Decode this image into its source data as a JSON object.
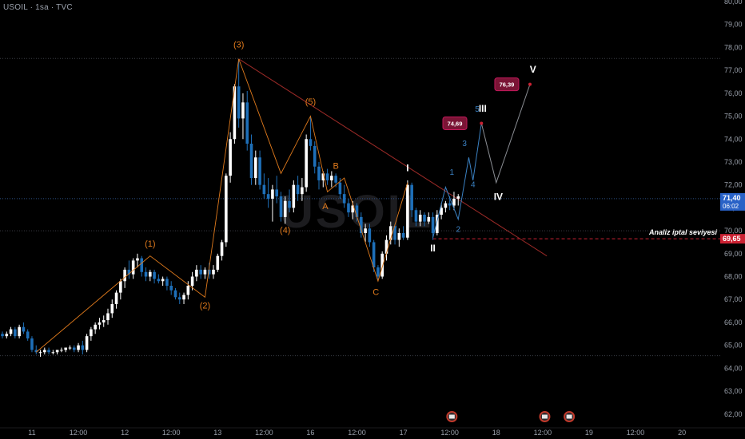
{
  "header": {
    "symbol": "USOIL · 1sa · TVC"
  },
  "watermark": "USOIL",
  "chart_data": {
    "type": "candlestick",
    "ylim": [
      61.4,
      80.0
    ],
    "y_ticks": [
      "80,00",
      "79,00",
      "78,00",
      "77,00",
      "76,00",
      "75,00",
      "74,00",
      "73,00",
      "72,00",
      "71,00",
      "70,00",
      "69,00",
      "68,00",
      "67,00",
      "66,00",
      "65,00",
      "64,00",
      "63,00",
      "62,00"
    ],
    "x_ticks": [
      {
        "label": "11",
        "t": 7
      },
      {
        "label": "12:00",
        "t": 18
      },
      {
        "label": "12",
        "t": 29
      },
      {
        "label": "12:00",
        "t": 40
      },
      {
        "label": "13",
        "t": 51
      },
      {
        "label": "12:00",
        "t": 62
      },
      {
        "label": "16",
        "t": 73
      },
      {
        "label": "12:00",
        "t": 84
      },
      {
        "label": "17",
        "t": 95
      },
      {
        "label": "12:00",
        "t": 106
      },
      {
        "label": "18",
        "t": 117
      },
      {
        "label": "12:00",
        "t": 128
      },
      {
        "label": "19",
        "t": 139
      },
      {
        "label": "12:00",
        "t": 150
      },
      {
        "label": "20",
        "t": 161
      }
    ],
    "candles": [
      [
        65.5,
        65.6,
        65.3,
        65.4
      ],
      [
        65.4,
        65.6,
        65.3,
        65.5
      ],
      [
        65.5,
        65.8,
        65.4,
        65.7
      ],
      [
        65.7,
        65.8,
        65.3,
        65.4
      ],
      [
        65.4,
        65.9,
        65.3,
        65.8
      ],
      [
        65.8,
        66.0,
        65.5,
        65.6
      ],
      [
        65.6,
        65.7,
        65.2,
        65.3
      ],
      [
        65.3,
        65.4,
        64.7,
        64.8
      ],
      [
        64.8,
        65.0,
        64.6,
        64.7
      ],
      [
        64.7,
        64.8,
        64.5,
        64.7
      ],
      [
        64.7,
        64.9,
        64.6,
        64.8
      ],
      [
        64.8,
        64.9,
        64.6,
        64.7
      ],
      [
        64.7,
        64.8,
        64.6,
        64.7
      ],
      [
        64.7,
        64.8,
        64.6,
        64.8
      ],
      [
        64.8,
        64.9,
        64.7,
        64.8
      ],
      [
        64.8,
        64.9,
        64.7,
        64.9
      ],
      [
        64.9,
        65.0,
        64.8,
        64.9
      ],
      [
        64.9,
        65.0,
        64.7,
        64.8
      ],
      [
        64.8,
        65.1,
        64.7,
        65.0
      ],
      [
        65.0,
        65.2,
        64.6,
        64.8
      ],
      [
        64.8,
        65.5,
        64.7,
        65.4
      ],
      [
        65.4,
        65.8,
        65.2,
        65.7
      ],
      [
        65.7,
        66.0,
        65.5,
        65.9
      ],
      [
        65.9,
        66.2,
        65.7,
        66.0
      ],
      [
        66.0,
        66.3,
        65.8,
        66.1
      ],
      [
        66.1,
        66.6,
        65.9,
        66.4
      ],
      [
        66.4,
        67.0,
        66.2,
        66.8
      ],
      [
        66.8,
        67.4,
        66.6,
        67.3
      ],
      [
        67.3,
        67.9,
        67.0,
        67.8
      ],
      [
        67.8,
        68.4,
        67.5,
        68.3
      ],
      [
        68.3,
        68.7,
        67.9,
        68.1
      ],
      [
        68.1,
        68.8,
        67.9,
        68.7
      ],
      [
        68.7,
        69.0,
        68.4,
        68.8
      ],
      [
        68.8,
        68.9,
        68.0,
        68.2
      ],
      [
        68.2,
        68.4,
        67.8,
        68.0
      ],
      [
        68.0,
        68.3,
        67.8,
        68.2
      ],
      [
        68.2,
        68.3,
        67.7,
        67.9
      ],
      [
        67.9,
        68.1,
        67.7,
        67.8
      ],
      [
        67.8,
        68.0,
        67.6,
        67.9
      ],
      [
        67.9,
        68.0,
        67.4,
        67.6
      ],
      [
        67.6,
        67.8,
        67.2,
        67.4
      ],
      [
        67.4,
        67.5,
        67.0,
        67.1
      ],
      [
        67.1,
        67.3,
        66.8,
        67.0
      ],
      [
        67.0,
        67.3,
        66.8,
        67.2
      ],
      [
        67.2,
        67.8,
        67.0,
        67.6
      ],
      [
        67.6,
        68.2,
        67.4,
        68.0
      ],
      [
        68.0,
        68.5,
        67.8,
        68.3
      ],
      [
        68.3,
        68.5,
        67.9,
        68.1
      ],
      [
        68.1,
        68.4,
        67.9,
        68.3
      ],
      [
        68.3,
        68.6,
        67.9,
        68.1
      ],
      [
        68.1,
        68.5,
        67.9,
        68.3
      ],
      [
        68.3,
        69.0,
        68.2,
        68.9
      ],
      [
        68.9,
        69.6,
        68.7,
        69.5
      ],
      [
        69.5,
        72.5,
        69.3,
        72.4
      ],
      [
        72.4,
        74.3,
        72.1,
        74.0
      ],
      [
        74.0,
        76.4,
        73.8,
        76.3
      ],
      [
        76.3,
        77.5,
        74.5,
        74.9
      ],
      [
        74.9,
        76.0,
        74.0,
        75.6
      ],
      [
        75.6,
        76.1,
        73.5,
        73.8
      ],
      [
        73.8,
        74.2,
        72.0,
        72.3
      ],
      [
        72.3,
        73.5,
        72.0,
        73.2
      ],
      [
        73.2,
        73.5,
        71.8,
        72.0
      ],
      [
        72.0,
        72.5,
        71.4,
        71.6
      ],
      [
        71.6,
        72.3,
        71.0,
        71.4
      ],
      [
        71.4,
        72.0,
        70.4,
        71.8
      ],
      [
        71.8,
        72.4,
        71.2,
        71.5
      ],
      [
        71.5,
        71.7,
        70.4,
        70.6
      ],
      [
        70.6,
        71.5,
        70.3,
        71.3
      ],
      [
        71.3,
        71.8,
        70.8,
        71.0
      ],
      [
        71.0,
        72.2,
        70.8,
        72.0
      ],
      [
        72.0,
        72.4,
        71.3,
        71.6
      ],
      [
        71.6,
        72.3,
        71.3,
        71.9
      ],
      [
        71.9,
        74.2,
        71.7,
        74.0
      ],
      [
        74.0,
        75.0,
        73.5,
        73.7
      ],
      [
        73.7,
        73.9,
        72.5,
        72.8
      ],
      [
        72.8,
        73.0,
        71.8,
        72.2
      ],
      [
        72.2,
        72.6,
        71.9,
        72.5
      ],
      [
        72.5,
        72.7,
        72.0,
        72.2
      ],
      [
        72.2,
        72.6,
        71.9,
        72.4
      ],
      [
        72.4,
        72.5,
        71.9,
        72.1
      ],
      [
        72.1,
        72.3,
        71.4,
        71.6
      ],
      [
        71.6,
        72.0,
        71.0,
        71.2
      ],
      [
        71.2,
        71.4,
        70.6,
        70.8
      ],
      [
        70.8,
        71.3,
        70.5,
        71.1
      ],
      [
        71.1,
        71.2,
        70.4,
        70.6
      ],
      [
        70.6,
        70.8,
        69.7,
        69.9
      ],
      [
        69.9,
        70.3,
        69.5,
        70.1
      ],
      [
        70.1,
        70.3,
        69.3,
        69.5
      ],
      [
        69.5,
        69.6,
        68.2,
        68.4
      ],
      [
        68.4,
        68.5,
        67.8,
        68.0
      ],
      [
        68.0,
        69.1,
        67.9,
        69.0
      ],
      [
        69.0,
        69.8,
        68.7,
        69.6
      ],
      [
        69.6,
        70.4,
        69.4,
        70.2
      ],
      [
        70.2,
        70.3,
        69.4,
        69.6
      ],
      [
        69.6,
        70.1,
        69.3,
        69.9
      ],
      [
        69.9,
        70.2,
        69.6,
        69.7
      ],
      [
        69.7,
        72.2,
        69.6,
        72.0
      ],
      [
        72.0,
        72.1,
        70.6,
        70.9
      ],
      [
        70.9,
        71.0,
        70.2,
        70.4
      ],
      [
        70.4,
        70.9,
        70.2,
        70.7
      ],
      [
        70.7,
        70.8,
        70.2,
        70.4
      ],
      [
        70.4,
        70.8,
        70.3,
        70.6
      ],
      [
        70.6,
        70.8,
        69.6,
        69.9
      ],
      [
        69.9,
        70.9,
        69.8,
        70.7
      ],
      [
        70.7,
        71.2,
        70.5,
        71.0
      ],
      [
        71.0,
        71.3,
        70.8,
        71.2
      ],
      [
        71.2,
        71.5,
        70.9,
        71.1
      ],
      [
        71.1,
        71.7,
        70.9,
        71.4
      ],
      [
        71.4,
        71.6,
        71.1,
        71.5
      ]
    ],
    "overlays": {
      "current_price": {
        "value": 71.4,
        "label": "71,40",
        "countdown": "06:02"
      },
      "invalidation": {
        "value": 69.65,
        "label": "69,65",
        "text": "Analiz iptal seviyesi"
      },
      "h_levels": [
        77.52,
        70.0,
        64.55
      ],
      "trendline": [
        [
          56,
          77.5
        ],
        [
          129,
          68.9
        ]
      ],
      "orange_path": [
        [
          8,
          64.7
        ],
        [
          35,
          68.9
        ],
        [
          48,
          67.1
        ],
        [
          56,
          77.5
        ],
        [
          66,
          72.5
        ],
        [
          73,
          75.0
        ],
        [
          77,
          71.7
        ],
        [
          81,
          72.3
        ],
        [
          89,
          67.8
        ],
        [
          96,
          72.1
        ]
      ],
      "orange_labels": [
        {
          "text": "(1)",
          "t": 35,
          "y": 69.3
        },
        {
          "text": "(2)",
          "t": 48,
          "y": 66.6
        },
        {
          "text": "(3)",
          "t": 56,
          "y": 78.0
        },
        {
          "text": "(4)",
          "t": 67,
          "y": 69.9
        },
        {
          "text": "(5)",
          "t": 73,
          "y": 75.5
        },
        {
          "text": "A",
          "t": 76.5,
          "y": 70.95
        },
        {
          "text": "B",
          "t": 79,
          "y": 72.7
        },
        {
          "text": "C",
          "t": 88.5,
          "y": 67.2
        }
      ],
      "blue_path": [
        [
          102,
          69.7
        ],
        [
          105,
          71.9
        ],
        [
          108,
          70.5
        ],
        [
          110.5,
          73.2
        ],
        [
          111.5,
          72.2
        ],
        [
          113.5,
          74.7
        ]
      ],
      "blue_labels": [
        {
          "text": "1",
          "t": 106.5,
          "y": 72.45
        },
        {
          "text": "2",
          "t": 108,
          "y": 69.95
        },
        {
          "text": "3",
          "t": 109.5,
          "y": 73.7
        },
        {
          "text": "4",
          "t": 111.5,
          "y": 71.9
        },
        {
          "text": "5",
          "t": 112.5,
          "y": 75.2
        }
      ],
      "gray_path": [
        [
          113.5,
          74.69
        ],
        [
          117,
          72.1
        ],
        [
          125,
          76.39
        ]
      ],
      "white_labels": [
        {
          "text": "I",
          "t": 96,
          "y": 72.6
        },
        {
          "text": "II",
          "t": 102,
          "y": 69.1
        },
        {
          "text": "III",
          "t": 113.8,
          "y": 75.2
        },
        {
          "text": "IV",
          "t": 117.5,
          "y": 71.35
        },
        {
          "text": "V",
          "t": 125.7,
          "y": 76.9
        }
      ],
      "target_tags": [
        {
          "text": "74,69",
          "t": 107.2,
          "y": 74.69
        },
        {
          "text": "76,39",
          "t": 119.5,
          "y": 76.39
        }
      ],
      "event_flags": [
        106.5,
        128.5,
        134.3
      ]
    }
  },
  "colors": {
    "bg": "#000000",
    "up": "#ffffff",
    "down": "#1e6fb8",
    "orange": "#e07a1c",
    "trend": "#9b2a27",
    "blue_wave": "#3b82c4",
    "gray": "#8a8d93",
    "price_tag": "#2962c7",
    "invalid": "#cc2233",
    "target": "#7a1435"
  }
}
